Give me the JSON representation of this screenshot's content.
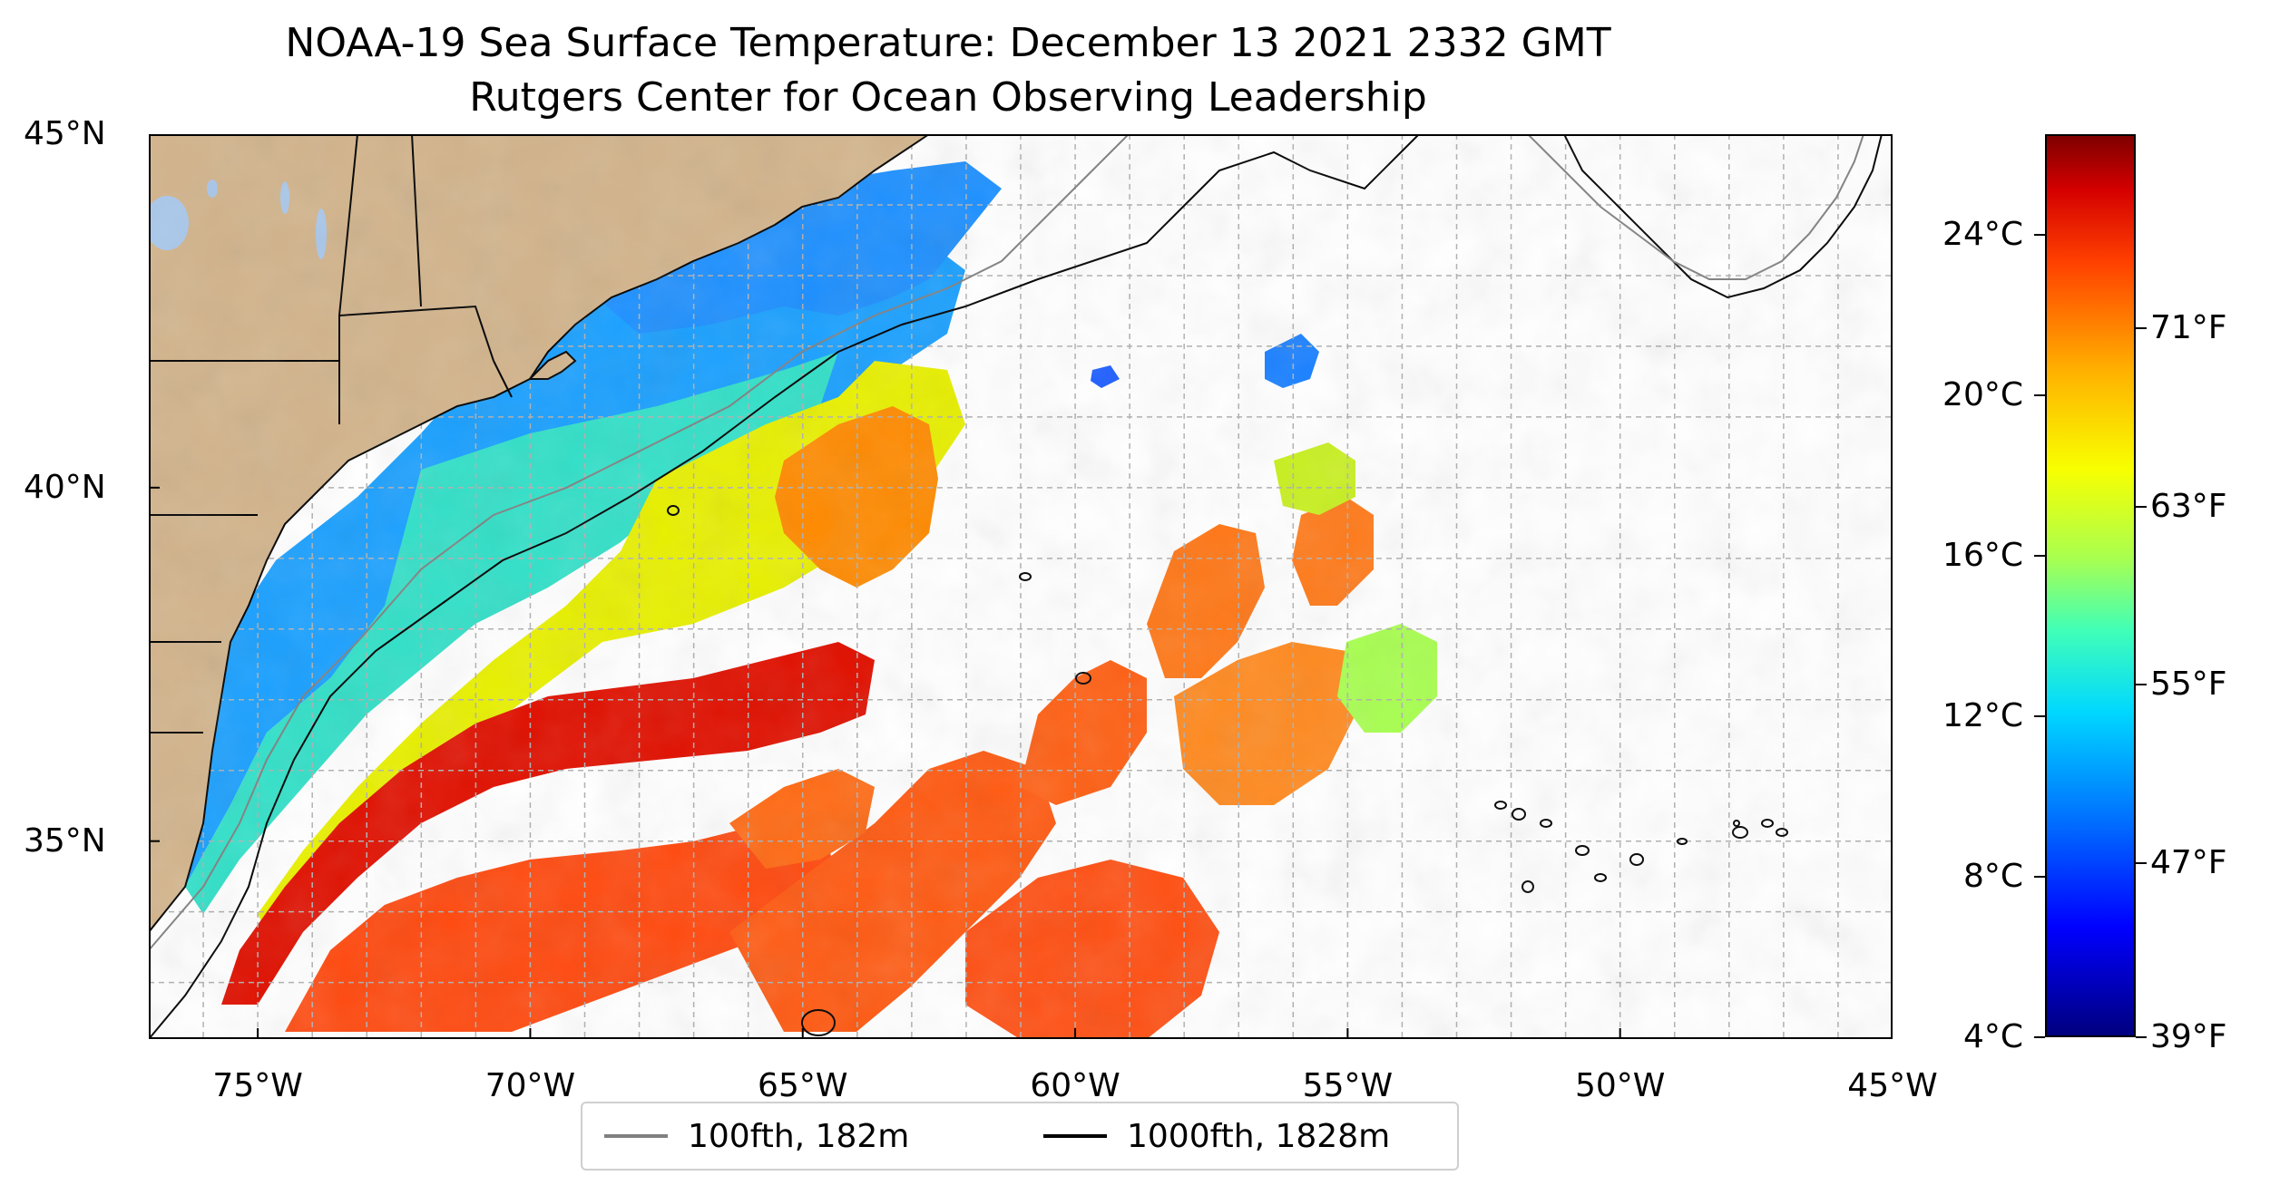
{
  "title": {
    "line1": "NOAA-19 Sea Surface Temperature: December 13 2021 2332 GMT",
    "line2": "Rutgers Center for Ocean Observing Leadership"
  },
  "map": {
    "lon_range": [
      -77,
      -45
    ],
    "lat_range": [
      32.2,
      45
    ],
    "gridlines": true,
    "land_color": "#d2b48c",
    "lake_color": "#a9c7ea",
    "lon_labels": [
      "75°W",
      "70°W",
      "65°W",
      "60°W",
      "55°W",
      "50°W",
      "45°W"
    ],
    "lon_values": [
      -75,
      -70,
      -65,
      -60,
      -55,
      -50,
      -45
    ],
    "lat_labels": [
      "45°N",
      "40°N",
      "35°N"
    ],
    "lat_values": [
      45,
      40,
      35
    ]
  },
  "colorbar": {
    "min_c": 4,
    "max_c": 26.5,
    "colormap": "jet",
    "celsius_labels": [
      "24°C",
      "20°C",
      "16°C",
      "12°C",
      "8°C",
      "4°C"
    ],
    "celsius_values": [
      24,
      20,
      16,
      12,
      8,
      4
    ],
    "fahrenheit_labels": [
      "71°F",
      "63°F",
      "55°F",
      "47°F",
      "39°F"
    ],
    "fahrenheit_values": [
      71,
      63,
      55,
      47,
      39
    ]
  },
  "legend": {
    "items": [
      {
        "label": "100fth, 182m",
        "color": "#808080"
      },
      {
        "label": "1000fth, 1828m",
        "color": "#000000"
      }
    ]
  }
}
